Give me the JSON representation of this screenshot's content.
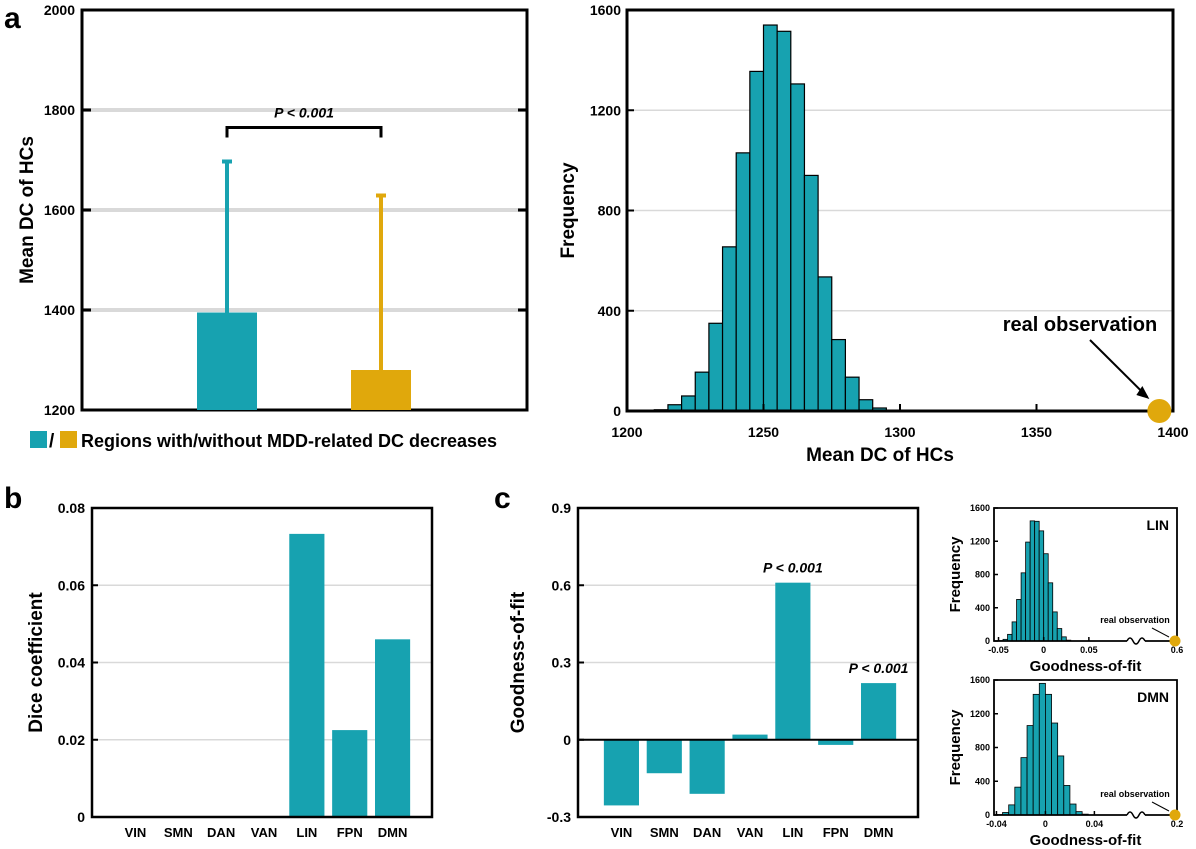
{
  "colors": {
    "teal": "#17a2b0",
    "gold": "#e0a80c",
    "axis": "#000000",
    "grid": "#d9d9d9"
  },
  "chart_data": [
    {
      "id": "a1",
      "panel_label": "a",
      "type": "bar",
      "categories": [
        "with",
        "without"
      ],
      "values": [
        1395,
        1280
      ],
      "error_upper": [
        1697,
        1629
      ],
      "colors": [
        "#17a2b0",
        "#e0a80c"
      ],
      "ylabel": "Mean DC of HCs",
      "ylim": [
        1200,
        2000
      ],
      "yticks": [
        1200,
        1400,
        1600,
        1800,
        2000
      ],
      "grid": true,
      "annotation": "P < 0.001",
      "legend_text": "Regions with/without MDD-related DC decreases",
      "legend_sep": "/"
    },
    {
      "id": "a2",
      "type": "bar",
      "subtype": "histogram",
      "bin_start": 1210,
      "bin_width": 5,
      "counts": [
        5,
        25,
        60,
        155,
        350,
        655,
        1030,
        1355,
        1540,
        1515,
        1305,
        940,
        535,
        285,
        135,
        45,
        12,
        3
      ],
      "xlabel": "Mean DC of HCs",
      "ylabel": "Frequency",
      "xlim": [
        1200,
        1400
      ],
      "xticks": [
        1200,
        1250,
        1300,
        1350,
        1400
      ],
      "ylim": [
        0,
        1600
      ],
      "yticks": [
        0,
        400,
        800,
        1200,
        1600
      ],
      "grid": true,
      "real_observation": 1395,
      "annotation": "real observation"
    },
    {
      "id": "b",
      "panel_label": "b",
      "type": "bar",
      "categories": [
        "VIN",
        "SMN",
        "DAN",
        "VAN",
        "LIN",
        "FPN",
        "DMN"
      ],
      "values": [
        0,
        0,
        0,
        0,
        0.0733,
        0.0225,
        0.046
      ],
      "ylabel": "Dice coefficient",
      "ylim": [
        0,
        0.08
      ],
      "yticks": [
        0,
        0.02,
        0.04,
        0.06,
        0.08
      ],
      "ytick_labels": [
        "0",
        "0.02",
        "0.04",
        "0.06",
        "0.08"
      ],
      "grid": true
    },
    {
      "id": "c",
      "panel_label": "c",
      "type": "bar",
      "categories": [
        "VIN",
        "SMN",
        "DAN",
        "VAN",
        "LIN",
        "FPN",
        "DMN"
      ],
      "values": [
        -0.255,
        -0.13,
        -0.21,
        0.02,
        0.61,
        -0.02,
        0.22
      ],
      "ylabel": "Goodness-of-fit",
      "ylim": [
        -0.3,
        0.9
      ],
      "yticks": [
        -0.3,
        0,
        0.3,
        0.6,
        0.9
      ],
      "ytick_labels": [
        "-0.3",
        "0",
        "0.3",
        "0.6",
        "0.9"
      ],
      "grid": true,
      "annotations": [
        {
          "category": "LIN",
          "text": "P < 0.001"
        },
        {
          "category": "DMN",
          "text": "P < 0.001"
        }
      ]
    },
    {
      "id": "c_lin",
      "type": "bar",
      "subtype": "histogram",
      "title": "LIN",
      "bin_start": -0.05,
      "bin_width": 0.005,
      "counts": [
        5,
        20,
        80,
        230,
        500,
        820,
        1190,
        1445,
        1440,
        1325,
        1050,
        700,
        350,
        150,
        50,
        10
      ],
      "xlabel": "Goodness-of-fit",
      "ylabel": "Frequency",
      "xticks_left": [
        -0.05,
        0,
        0.05
      ],
      "xtick_labels_left": [
        "-0.05",
        "0",
        "0.05"
      ],
      "xlim_left": [
        -0.055,
        0.09
      ],
      "xtick_right": "0.6",
      "ylim": [
        0,
        1600
      ],
      "yticks": [
        0,
        400,
        800,
        1200,
        1600
      ],
      "annotation": "real observation"
    },
    {
      "id": "c_dmn",
      "type": "bar",
      "subtype": "histogram",
      "title": "DMN",
      "bin_start": -0.04,
      "bin_width": 0.005,
      "counts": [
        5,
        30,
        120,
        330,
        680,
        1060,
        1430,
        1560,
        1430,
        1090,
        700,
        350,
        130,
        40,
        10
      ],
      "xlabel": "Goodness-of-fit",
      "ylabel": "Frequency",
      "xticks_left": [
        -0.04,
        0,
        0.04
      ],
      "xtick_labels_left": [
        "-0.04",
        "0",
        "0.04"
      ],
      "xlim_left": [
        -0.042,
        0.065
      ],
      "xtick_right": "0.2",
      "ylim": [
        0,
        1600
      ],
      "yticks": [
        0,
        400,
        800,
        1200,
        1600
      ],
      "annotation": "real observation"
    }
  ]
}
